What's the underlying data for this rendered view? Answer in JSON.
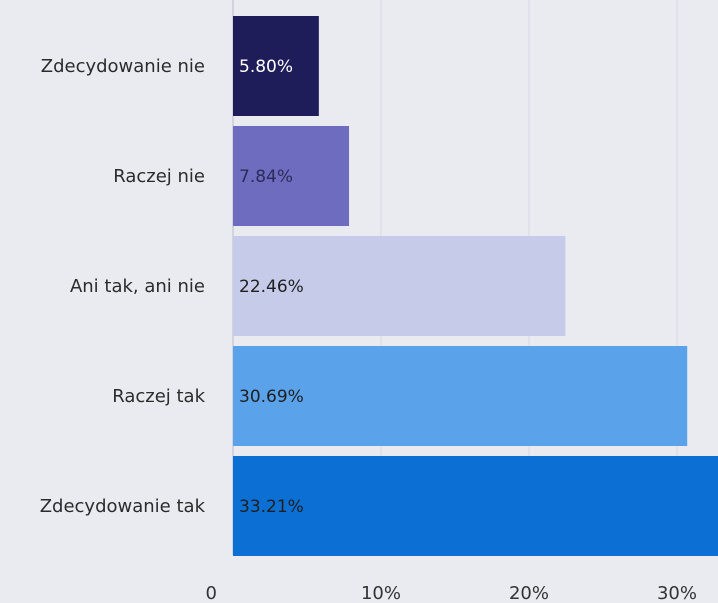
{
  "chart_data": {
    "type": "bar",
    "orientation": "horizontal",
    "categories": [
      "Zdecydowanie nie",
      "Raczej nie",
      "Ani tak, ani nie",
      "Raczej tak",
      "Zdecydowanie tak"
    ],
    "values": [
      5.8,
      7.84,
      22.46,
      30.69,
      33.21
    ],
    "value_labels": [
      "5.80%",
      "7.84%",
      "22.46%",
      "30.69%",
      "33.21%"
    ],
    "colors": [
      "#1e1d5a",
      "#6e6cbf",
      "#c5cbe8",
      "#5aa3ea",
      "#0b6fd3"
    ],
    "label_colors": [
      "#ffffff",
      "#2b2b5a",
      "#1f1f1f",
      "#1f1f1f",
      "#1f1f1f"
    ],
    "x_ticks": [
      {
        "value": 0,
        "label": "0"
      },
      {
        "value": 10,
        "label": "10%"
      },
      {
        "value": 20,
        "label": "20%"
      },
      {
        "value": 30,
        "label": "30%"
      }
    ],
    "xlim": [
      0,
      33.21
    ],
    "grid": true,
    "title": "",
    "xlabel": "",
    "ylabel": ""
  }
}
